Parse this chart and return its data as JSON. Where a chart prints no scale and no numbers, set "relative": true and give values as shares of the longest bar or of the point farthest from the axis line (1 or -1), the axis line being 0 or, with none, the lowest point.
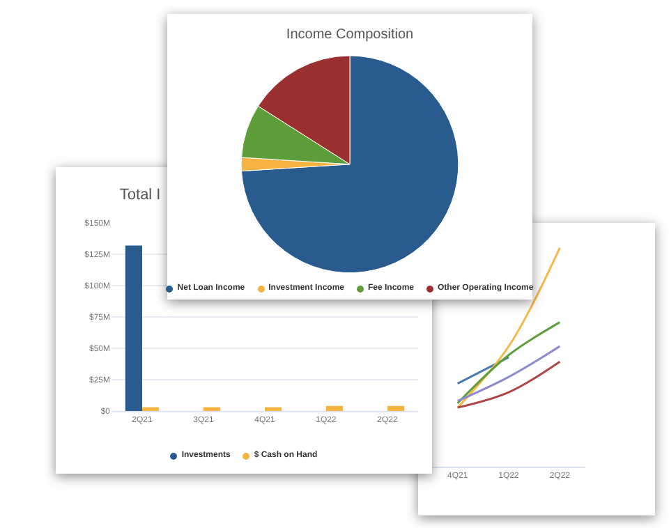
{
  "chart_data": [
    {
      "type": "bar",
      "title": "Total I",
      "categories": [
        "2Q21",
        "3Q21",
        "4Q21",
        "1Q22",
        "2Q22"
      ],
      "series": [
        {
          "name": "Investments",
          "color": "#2a5b8f",
          "values": [
            132,
            null,
            null,
            null,
            null
          ]
        },
        {
          "name": "$ Cash on Hand",
          "color": "#f5b342",
          "values": [
            3,
            3,
            3,
            4,
            4
          ]
        }
      ],
      "ylim": [
        0,
        150
      ],
      "yticks": [
        {
          "value": 0,
          "label": "$0"
        },
        {
          "value": 25,
          "label": "$25M"
        },
        {
          "value": 50,
          "label": "$50M"
        },
        {
          "value": 75,
          "label": "$75M"
        },
        {
          "value": 100,
          "label": "$100M"
        },
        {
          "value": 125,
          "label": "$125M"
        },
        {
          "value": 150,
          "label": "$150M"
        }
      ],
      "grid": "y",
      "legend": "bottom"
    },
    {
      "type": "line",
      "relative": true,
      "categories": [
        "4Q21",
        "1Q22",
        "2Q22"
      ],
      "series": [
        {
          "color": "#4a7ab0",
          "values": [
            0.38,
            0.5,
            null
          ]
        },
        {
          "color": "#f7b84a",
          "values": [
            0.27,
            0.55,
            1
          ]
        },
        {
          "color": "#5e9e3a",
          "values": [
            0.29,
            0.51,
            0.66
          ]
        },
        {
          "color": "#8e8ad0",
          "values": [
            0.3,
            0.41,
            0.55
          ]
        },
        {
          "color": "#b04545",
          "values": [
            0.27,
            0.34,
            0.48
          ]
        }
      ]
    },
    {
      "type": "pie",
      "title": "Income Composition",
      "categories": [
        "Net Loan Income",
        "Investment Income",
        "Fee Income",
        "Other Operating Income"
      ],
      "values": [
        74,
        2,
        8,
        16
      ],
      "colors": [
        "#2a5b8f",
        "#f5b342",
        "#5e9e3a",
        "#9b3030"
      ],
      "legend": "bottom"
    }
  ]
}
